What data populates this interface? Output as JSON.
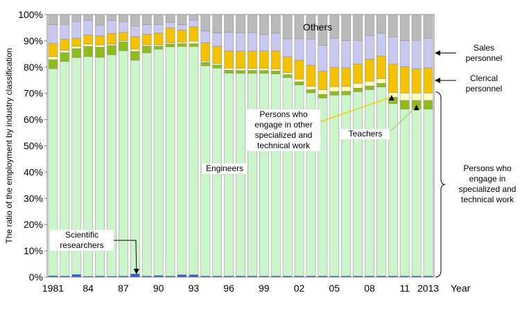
{
  "chart_data": {
    "type": "bar",
    "stacked": true,
    "normalized_percent": true,
    "ylabel": "The ratio of the employment by industry classification",
    "xlabel": "Year",
    "ylim": [
      0,
      100
    ],
    "yticks": [
      "0%",
      "10%",
      "20%",
      "30%",
      "40%",
      "50%",
      "60%",
      "70%",
      "80%",
      "90%",
      "100%"
    ],
    "xtick_labels": [
      "1981",
      "84",
      "87",
      "90",
      "93",
      "96",
      "99",
      "02",
      "05",
      "08",
      "11",
      "2013"
    ],
    "xtick_years": [
      1981,
      1984,
      1987,
      1990,
      1993,
      1996,
      1999,
      2002,
      2005,
      2008,
      2011,
      2013
    ],
    "years": [
      1981,
      1982,
      1983,
      1984,
      1985,
      1986,
      1987,
      1988,
      1989,
      1990,
      1991,
      1992,
      1993,
      1994,
      1995,
      1996,
      1997,
      1998,
      1999,
      2000,
      2001,
      2002,
      2003,
      2004,
      2005,
      2006,
      2007,
      2008,
      2009,
      2010,
      2011,
      2012,
      2013
    ],
    "series": [
      {
        "key": "scientific",
        "color": "#2e5fd6",
        "values": [
          0.5,
          0.4,
          1.0,
          0.3,
          0.4,
          0.3,
          0.4,
          1.2,
          0.4,
          0.6,
          0.4,
          0.9,
          0.9,
          0.4,
          0.4,
          0.4,
          0.4,
          0.4,
          0.4,
          0.4,
          0.4,
          0.4,
          0.4,
          0.4,
          0.4,
          0.4,
          0.4,
          0.4,
          0.4,
          0.4,
          0.4,
          0.4,
          0.4
        ]
      },
      {
        "key": "engineers",
        "color": "#ccf5cc",
        "values": [
          78.9,
          81.7,
          82.6,
          83.7,
          83.3,
          84.4,
          85.8,
          81.4,
          85.0,
          86.2,
          87.3,
          86.9,
          86.9,
          80.1,
          79.2,
          77.3,
          77.2,
          77.2,
          77.2,
          77.0,
          75.6,
          72.8,
          69.8,
          67.8,
          68.9,
          69.0,
          70.2,
          71.0,
          72.0,
          65.7,
          63.6,
          63.6,
          63.6
        ]
      },
      {
        "key": "teachers",
        "color": "#8fbc1c",
        "values": [
          3.4,
          3.4,
          3.4,
          3.9,
          3.9,
          3.5,
          3.4,
          3.4,
          2.6,
          1.2,
          1.1,
          1.1,
          1.1,
          1.3,
          1.2,
          1.1,
          1.1,
          1.1,
          1.1,
          1.1,
          1.1,
          1.2,
          1.2,
          1.4,
          1.4,
          1.4,
          1.4,
          1.4,
          1.4,
          2.4,
          3.3,
          3.3,
          3.3
        ]
      },
      {
        "key": "other_specialized",
        "color": "#ffffc0",
        "values": [
          1.2,
          0.9,
          0.9,
          0.8,
          0.8,
          0.5,
          0.5,
          0.8,
          0.5,
          0.5,
          0.5,
          0.5,
          1.0,
          0.5,
          0.6,
          0.8,
          0.8,
          0.8,
          0.8,
          0.8,
          0.8,
          1.0,
          1.3,
          1.8,
          1.8,
          1.8,
          1.8,
          1.8,
          1.8,
          1.8,
          2.8,
          2.8,
          2.8
        ]
      },
      {
        "key": "clerical",
        "color": "#f5c200",
        "values": [
          5.0,
          4.2,
          3.1,
          3.5,
          3.5,
          4.1,
          3.1,
          4.8,
          4.0,
          4.4,
          5.6,
          4.7,
          5.4,
          7.0,
          6.5,
          6.6,
          6.6,
          6.6,
          6.6,
          6.9,
          6.0,
          7.2,
          8.0,
          7.0,
          7.4,
          7.1,
          7.4,
          8.4,
          8.6,
          10.9,
          10.0,
          9.2,
          9.6
        ]
      },
      {
        "key": "sales",
        "color": "#c8c8f0",
        "values": [
          7.1,
          5.7,
          6.3,
          5.6,
          4.1,
          4.9,
          4.1,
          4.1,
          3.6,
          3.3,
          2.2,
          2.0,
          2.6,
          4.4,
          5.1,
          7.0,
          7.0,
          7.0,
          6.4,
          6.7,
          6.9,
          8.2,
          10.0,
          9.8,
          11.1,
          10.4,
          9.0,
          9.0,
          8.7,
          10.3,
          10.0,
          10.9,
          11.3
        ]
      },
      {
        "key": "others",
        "color": "#bababa",
        "values": [
          3.9,
          3.7,
          2.7,
          2.2,
          4.0,
          2.3,
          2.7,
          4.3,
          3.9,
          3.8,
          2.9,
          3.9,
          2.1,
          6.3,
          7.0,
          6.8,
          6.9,
          6.9,
          7.5,
          7.1,
          9.2,
          9.2,
          9.3,
          11.8,
          9.0,
          9.9,
          9.8,
          8.0,
          7.1,
          8.5,
          9.9,
          9.8,
          9.0
        ]
      }
    ],
    "annotations": {
      "others": "Others",
      "sales": "Sales\npersonnel",
      "clerical": "Clerical\npersonnel",
      "other_specialized": "Persons who\nengage in other\nspecialized and\ntechnical work",
      "teachers": "Teachers",
      "engineers": "Engineers",
      "scientific": "Scientific\nresearchers",
      "specialized_group": "Persons who\nengage in\nspecialized and\ntechnical work"
    }
  }
}
